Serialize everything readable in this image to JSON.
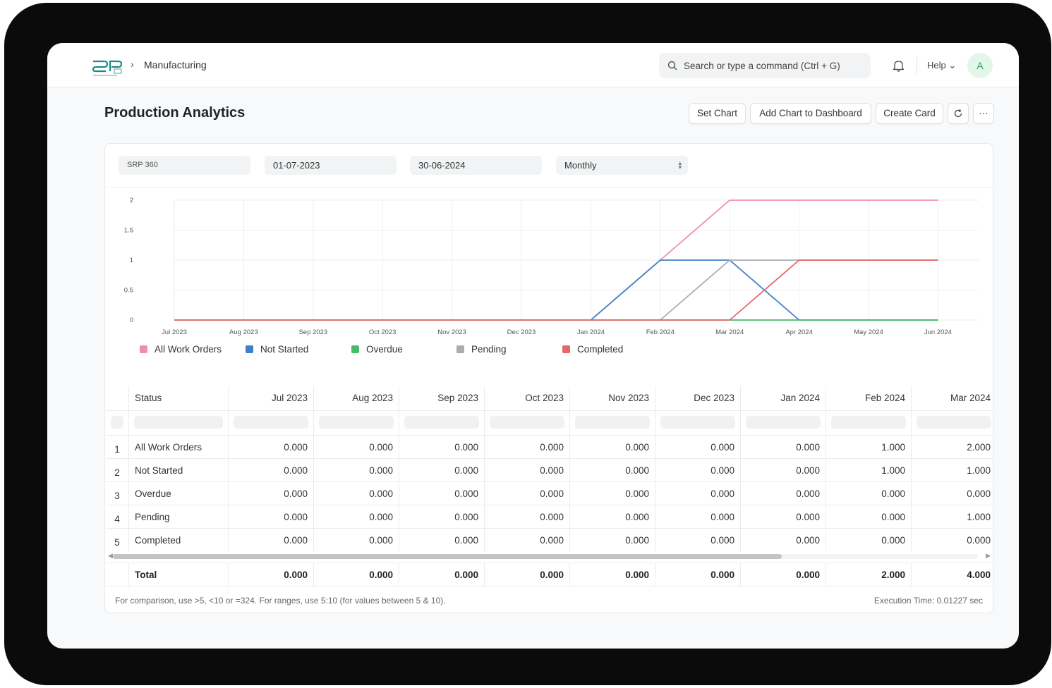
{
  "breadcrumb": {
    "separator": "›",
    "section": "Manufacturing"
  },
  "search": {
    "placeholder": "Search or type a command (Ctrl + G)"
  },
  "nav": {
    "help_label": "Help ⌄",
    "avatar_initial": "A"
  },
  "page": {
    "title": "Production Analytics"
  },
  "toolbar": {
    "set_chart": "Set Chart",
    "add_chart": "Add Chart to Dashboard",
    "create_card": "Create Card",
    "more": "···"
  },
  "filters": {
    "company": "SRP 360",
    "from_date": "01-07-2023",
    "to_date": "30-06-2024",
    "range": "Monthly"
  },
  "colors": {
    "all_work_orders": "#f08cb0",
    "not_started": "#3c82c8",
    "overdue": "#49b96a",
    "pending": "#a9adb2",
    "completed": "#e36868"
  },
  "chart_data": {
    "type": "line",
    "x": [
      "Jul 2023",
      "Aug 2023",
      "Sep 2023",
      "Oct 2023",
      "Nov 2023",
      "Dec 2023",
      "Jan 2024",
      "Feb 2024",
      "Mar 2024",
      "Apr 2024",
      "May 2024",
      "Jun 2024"
    ],
    "yticks": [
      "0",
      "0.5",
      "1",
      "1.5",
      "2"
    ],
    "ylim": [
      0,
      2
    ],
    "grid": true,
    "legend_position": "bottom-left",
    "series": [
      {
        "name": "All Work Orders",
        "color": "#f08cb0",
        "values": [
          0,
          0,
          0,
          0,
          0,
          0,
          0,
          1,
          2,
          2,
          2,
          2
        ]
      },
      {
        "name": "Not Started",
        "color": "#3c82c8",
        "values": [
          0,
          0,
          0,
          0,
          0,
          0,
          0,
          1,
          1,
          0,
          0,
          0
        ]
      },
      {
        "name": "Overdue",
        "color": "#49b96a",
        "values": [
          0,
          0,
          0,
          0,
          0,
          0,
          0,
          0,
          0,
          0,
          0,
          0
        ]
      },
      {
        "name": "Pending",
        "color": "#a9adb2",
        "values": [
          0,
          0,
          0,
          0,
          0,
          0,
          0,
          0,
          1,
          1,
          1,
          1
        ]
      },
      {
        "name": "Completed",
        "color": "#e36868",
        "values": [
          0,
          0,
          0,
          0,
          0,
          0,
          0,
          0,
          0,
          1,
          1,
          1
        ]
      }
    ]
  },
  "table": {
    "status_header": "Status",
    "columns": [
      "Jul 2023",
      "Aug 2023",
      "Sep 2023",
      "Oct 2023",
      "Nov 2023",
      "Dec 2023",
      "Jan 2024",
      "Feb 2024",
      "Mar 2024"
    ],
    "rows": [
      {
        "index": "1",
        "status": "All Work Orders",
        "values": [
          "0.000",
          "0.000",
          "0.000",
          "0.000",
          "0.000",
          "0.000",
          "0.000",
          "1.000",
          "2.000"
        ]
      },
      {
        "index": "2",
        "status": "Not Started",
        "values": [
          "0.000",
          "0.000",
          "0.000",
          "0.000",
          "0.000",
          "0.000",
          "0.000",
          "1.000",
          "1.000"
        ]
      },
      {
        "index": "3",
        "status": "Overdue",
        "values": [
          "0.000",
          "0.000",
          "0.000",
          "0.000",
          "0.000",
          "0.000",
          "0.000",
          "0.000",
          "0.000"
        ]
      },
      {
        "index": "4",
        "status": "Pending",
        "values": [
          "0.000",
          "0.000",
          "0.000",
          "0.000",
          "0.000",
          "0.000",
          "0.000",
          "0.000",
          "1.000"
        ]
      },
      {
        "index": "5",
        "status": "Completed",
        "values": [
          "0.000",
          "0.000",
          "0.000",
          "0.000",
          "0.000",
          "0.000",
          "0.000",
          "0.000",
          "0.000"
        ]
      }
    ],
    "total_label": "Total",
    "totals": [
      "0.000",
      "0.000",
      "0.000",
      "0.000",
      "0.000",
      "0.000",
      "0.000",
      "2.000",
      "4.000"
    ]
  },
  "footer": {
    "note": "For comparison, use >5, <10 or =324. For ranges, use 5:10 (for values between 5 & 10).",
    "execution": "Execution Time: 0.01227 sec"
  }
}
